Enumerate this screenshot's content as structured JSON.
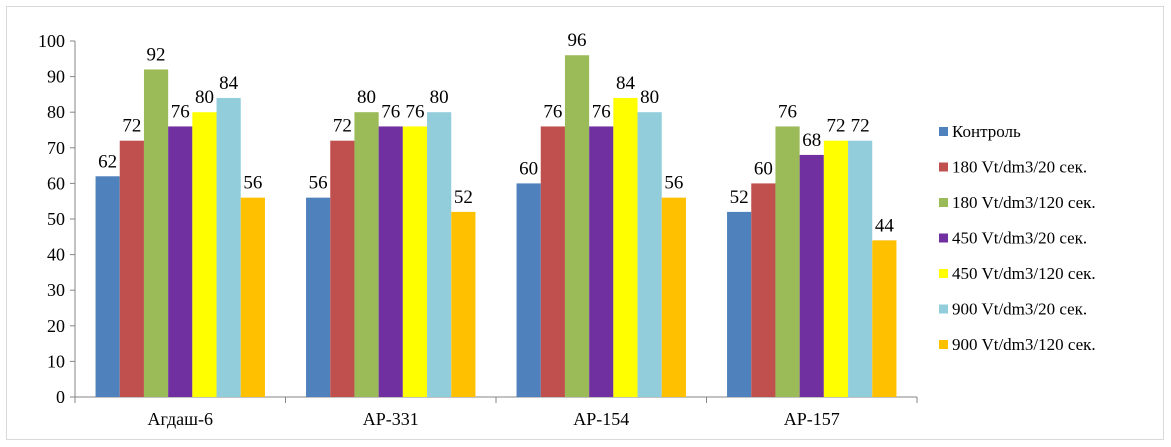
{
  "chart_data": {
    "type": "bar",
    "title": "",
    "xlabel": "",
    "ylabel": "",
    "ylim": [
      0,
      100
    ],
    "yticks": [
      0,
      10,
      20,
      30,
      40,
      50,
      60,
      70,
      80,
      90,
      100
    ],
    "grid": false,
    "legend_position": "right",
    "categories": [
      "Агдаш-6",
      "AP-331",
      "AP-154",
      "AP-157"
    ],
    "series": [
      {
        "name": "Контроль",
        "color": "#4f81bd",
        "values": [
          62,
          56,
          60,
          52
        ]
      },
      {
        "name": "180 Vt/dm3/20 сек.",
        "color": "#c0504d",
        "values": [
          72,
          72,
          76,
          60
        ]
      },
      {
        "name": "180 Vt/dm3/120 сек.",
        "color": "#9bbb59",
        "values": [
          92,
          80,
          96,
          76
        ]
      },
      {
        "name": "450 Vt/dm3/20 сек.",
        "color": "#7030a0",
        "values": [
          76,
          76,
          76,
          68
        ]
      },
      {
        "name": "450 Vt/dm3/120 сек.",
        "color": "#ffff00",
        "values": [
          80,
          76,
          84,
          72
        ]
      },
      {
        "name": "900 Vt/dm3/20 сек.",
        "color": "#92cddc",
        "values": [
          84,
          80,
          80,
          72
        ]
      },
      {
        "name": "900 Vt/dm3/120 сек.",
        "color": "#ffc000",
        "values": [
          56,
          52,
          56,
          44
        ]
      }
    ]
  }
}
